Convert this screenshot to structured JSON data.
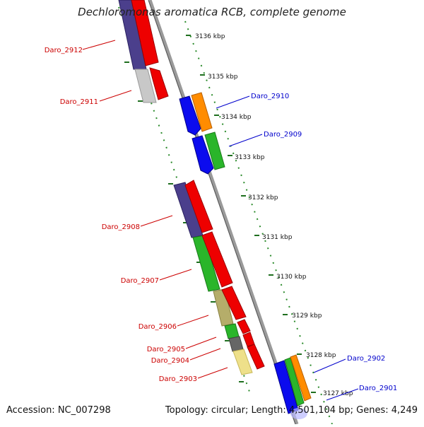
{
  "title": "Dechloromonas aromatica RCB, complete genome",
  "footer": {
    "accession": "Accession: NC_007298",
    "summary": "Topology: circular; Length: 4,501,104 bp; Genes: 4,249"
  },
  "colors": {
    "backbone": "#8a8a8a",
    "ticks": "#2a8a2a",
    "label_left": "#cc0000",
    "label_right": "#0000cc"
  },
  "kbp_ticks": [
    "3136 kbp",
    "3135 kbp",
    "3134 kbp",
    "3133 kbp",
    "3132 kbp",
    "3131 kbp",
    "3130 kbp",
    "3129 kbp",
    "3128 kbp",
    "3127 kbp"
  ],
  "genes_left": [
    "Daro_2912",
    "Daro_2911",
    "Daro_2908",
    "Daro_2907",
    "Daro_2906",
    "Daro_2905",
    "Daro_2904",
    "Daro_2903"
  ],
  "genes_right": [
    "Daro_2910",
    "Daro_2909",
    "Daro_2902",
    "Daro_2901"
  ]
}
